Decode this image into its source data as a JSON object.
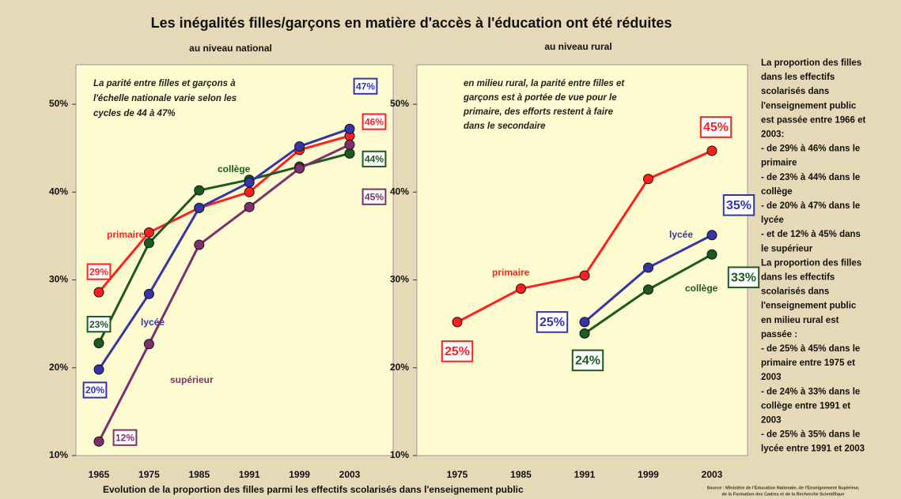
{
  "header": {
    "title": "Les inégalités filles/garçons en matière d'accès à l'éducation ont été réduites"
  },
  "chart_data": [
    {
      "type": "line",
      "title": "au niveau national",
      "annotation": [
        "La parité entre filles et garçons à",
        "l'échelle nationale varie selon les",
        "cycles de 44 à 47%"
      ],
      "categories": [
        "1965",
        "1975",
        "1985",
        "1991",
        "1999",
        "2003"
      ],
      "ylim": [
        10,
        54.5
      ],
      "yticks": [
        {
          "value": 10,
          "label": "10%"
        },
        {
          "value": 20,
          "label": "20%"
        },
        {
          "value": 30,
          "label": "30%"
        },
        {
          "value": 40,
          "label": "40%"
        },
        {
          "value": 50,
          "label": "50%"
        }
      ],
      "series": [
        {
          "name": "primaire",
          "color": "#ff1f1f",
          "values": [
            28.6,
            35.4,
            38.2,
            40.0,
            44.8,
            46.4
          ],
          "value_labels": [
            "29%",
            null,
            null,
            null,
            null,
            "46%"
          ]
        },
        {
          "name": "collège",
          "color": "#1d5a22",
          "values": [
            22.8,
            34.2,
            40.2,
            41.4,
            42.9,
            44.4
          ],
          "value_labels": [
            "23%",
            null,
            null,
            null,
            null,
            "44%"
          ]
        },
        {
          "name": "lycée",
          "color": "#3535a8",
          "values": [
            19.8,
            28.4,
            38.2,
            41.1,
            45.2,
            47.2
          ],
          "value_labels": [
            "20%",
            null,
            null,
            null,
            null,
            "47%"
          ]
        },
        {
          "name": "supérieur",
          "color": "#7d2f6e",
          "values": [
            11.6,
            22.7,
            34.0,
            38.3,
            42.7,
            45.4
          ],
          "value_labels": [
            "12%",
            null,
            null,
            null,
            null,
            "45%"
          ]
        }
      ]
    },
    {
      "type": "line",
      "title": "au niveau rural",
      "annotation": [
        "en milieu rural, la parité entre filles et",
        "garçons est à portée de vue pour le",
        "primaire, des efforts restent à faire",
        "dans le secondaire"
      ],
      "categories": [
        "1975",
        "1985",
        "1991",
        "1999",
        "2003"
      ],
      "ylim": [
        10,
        54.5
      ],
      "yticks": [
        {
          "value": 10,
          "label": "10%"
        },
        {
          "value": 20,
          "label": "20%"
        },
        {
          "value": 30,
          "label": "30%"
        },
        {
          "value": 40,
          "label": "40%"
        },
        {
          "value": 50,
          "label": "50%"
        }
      ],
      "series": [
        {
          "name": "primaire",
          "color": "#ff1f1f",
          "values": [
            25.2,
            29.0,
            30.5,
            41.5,
            44.7
          ],
          "value_labels": [
            "25%",
            null,
            null,
            null,
            "45%"
          ]
        },
        {
          "name": "lycée",
          "color": "#3535a8",
          "values": [
            null,
            null,
            25.2,
            31.4,
            35.1
          ],
          "value_labels": [
            null,
            null,
            "25%",
            null,
            "35%"
          ]
        },
        {
          "name": "collège",
          "color": "#1d5a22",
          "values": [
            null,
            null,
            23.9,
            28.9,
            32.9
          ],
          "value_labels": [
            null,
            null,
            "24%",
            null,
            "33%"
          ]
        }
      ]
    }
  ],
  "sidebar": {
    "lines": [
      "La proportion des filles",
      "dans les effectifs",
      "scolarisés dans",
      "l'enseignement public",
      "est passée entre 1966 et",
      "2003:",
      " - de 29% à 46% dans le",
      "primaire",
      " - de 23% à 44% dans le",
      "collège",
      " - de 20% à 47% dans le",
      "lycée",
      " - et de 12% à 45% dans",
      "le supérieur",
      "La proportion des filles",
      "dans les effectifs",
      "scolarisés dans",
      "l'enseignement public",
      "en milieu rural est",
      "passée :",
      " - de 25% à 45% dans le",
      "primaire entre 1975 et",
      "2003",
      " - de 24% à 33% dans le",
      "collège entre 1991 et",
      "2003",
      " - de 25% à 35% dans le",
      "lycée entre 1991 et 2003"
    ]
  },
  "footer": {
    "caption": "Evolution de la proportion des filles parmi les effectifs scolarisés dans l'enseignement public",
    "source": [
      "Source : Ministère de l'Education Nationale, de l'Enseignement Supérieur,",
      "de la Formation des Cadres et de la Recherche Scientifique"
    ]
  }
}
